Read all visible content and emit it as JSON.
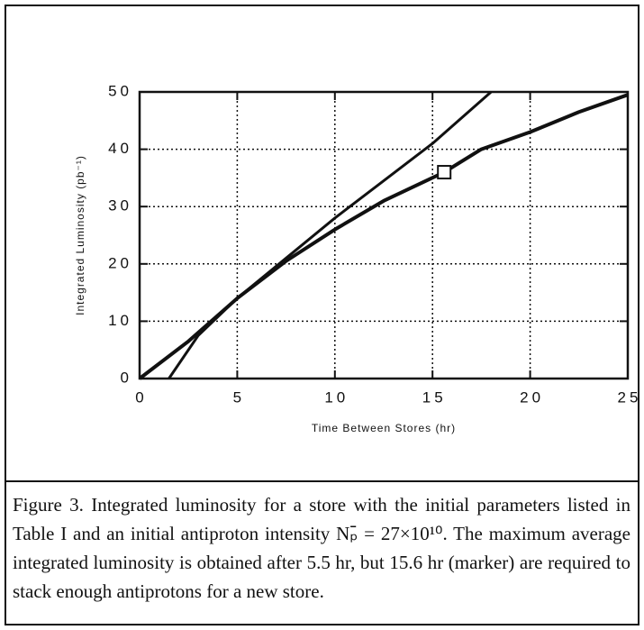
{
  "chart_data": {
    "type": "line",
    "xlabel": "Time Between Stores (hr)",
    "ylabel": "Integrated Luminosity (pb⁻¹)",
    "xlim": [
      0,
      25
    ],
    "xticks": [
      0,
      5,
      10,
      15,
      20,
      25
    ],
    "ylim": [
      0,
      50
    ],
    "yticks": [
      0,
      10,
      20,
      30,
      40,
      50
    ],
    "grid": true,
    "series": [
      {
        "color": "#111111",
        "x": [
          0,
          2.5,
          5,
          7.5,
          10,
          12.5,
          15.6,
          17.5,
          20,
          22.5,
          25
        ],
        "values": [
          0,
          6.5,
          14,
          20.5,
          26,
          31,
          36,
          40,
          43,
          46.5,
          49.5
        ]
      },
      {
        "color": "#111111",
        "x": [
          1.5,
          3,
          5,
          7.5,
          10,
          12.5,
          15,
          18
        ],
        "values": [
          0,
          7.5,
          14,
          21,
          28,
          34.5,
          41,
          50
        ]
      }
    ],
    "marker": {
      "x": 15.6,
      "y": 36
    },
    "caption": "Figure 3. Integrated luminosity for a store with the initial parameters listed in Table I and an initial antiproton intensity Nₚ̄ = 27×10¹⁰. The maximum average integrated luminosity is obtained after 5.5 hr, but 15.6 hr (marker) are required to stack enough antiprotons for a new store."
  }
}
